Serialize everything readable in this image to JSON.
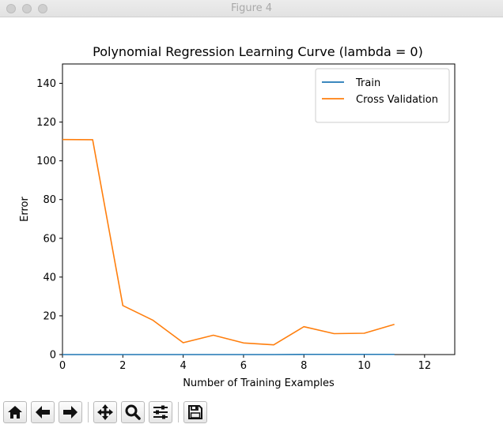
{
  "window": {
    "title": "Figure 4"
  },
  "toolbar": {
    "buttons": [
      {
        "name": "home-button",
        "icon": "home-icon"
      },
      {
        "name": "back-button",
        "icon": "arrow-left-icon"
      },
      {
        "name": "forward-button",
        "icon": "arrow-right-icon"
      },
      {
        "name": "pan-button",
        "icon": "move-icon"
      },
      {
        "name": "zoom-button",
        "icon": "magnifier-icon"
      },
      {
        "name": "configure-subplots-button",
        "icon": "sliders-icon"
      },
      {
        "name": "save-button",
        "icon": "floppy-disk-icon"
      }
    ]
  },
  "chart_data": {
    "type": "line",
    "title": "Polynomial Regression Learning Curve (lambda = 0)",
    "xlabel": "Number of Training Examples",
    "ylabel": "Error",
    "xlim": [
      0,
      13
    ],
    "ylim": [
      0,
      150
    ],
    "xticks": [
      0,
      2,
      4,
      6,
      8,
      10,
      12
    ],
    "yticks": [
      0,
      20,
      40,
      60,
      80,
      100,
      120,
      140
    ],
    "grid": false,
    "legend": "top-right",
    "series": [
      {
        "name": "Train",
        "color": "#1f77b4",
        "x": [
          0,
          1,
          2,
          3,
          4,
          5,
          6,
          7,
          8,
          9,
          10,
          11
        ],
        "y": [
          0,
          0,
          0,
          0,
          0,
          0,
          0,
          0,
          0.1,
          0.1,
          0.1,
          0.1
        ]
      },
      {
        "name": "Cross Validation",
        "color": "#ff7f0e",
        "x": [
          0,
          1,
          2,
          3,
          4,
          5,
          6,
          7,
          8,
          9,
          10,
          11
        ],
        "y": [
          111.0,
          110.9,
          25.3,
          17.7,
          6.1,
          10.0,
          6.0,
          5.0,
          14.4,
          10.8,
          11.0,
          15.6
        ]
      }
    ]
  }
}
